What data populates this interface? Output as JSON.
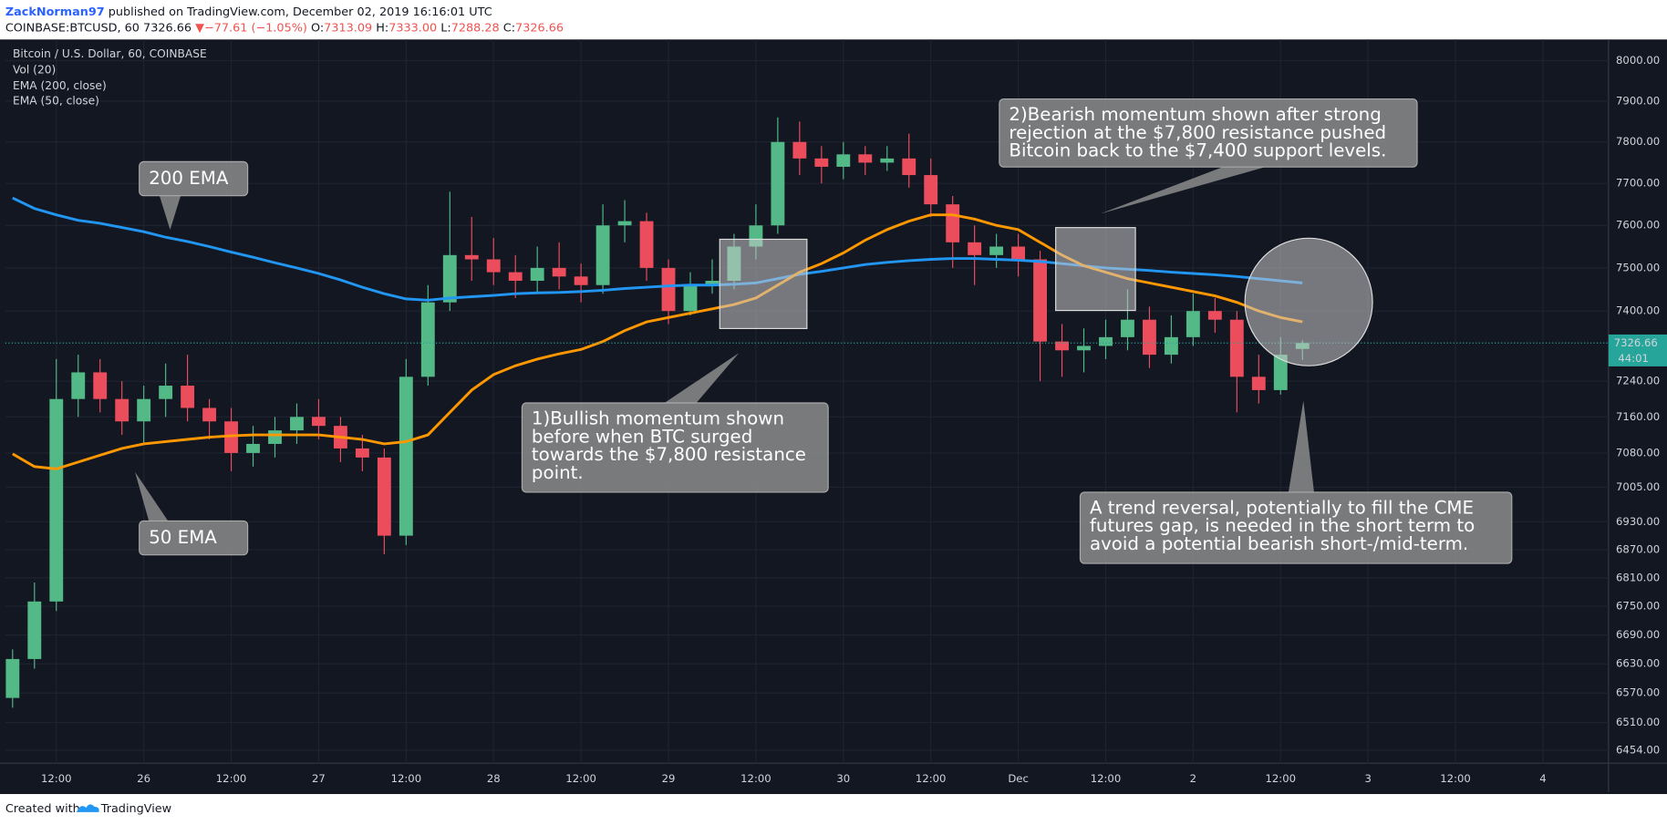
{
  "header": {
    "author": "ZackNorman97",
    "published": "published on TradingView.com, December 02, 2019 16:16:01 UTC",
    "symbol": "COINBASE:BTCUSD, 60",
    "last": "7326.66",
    "arrow": "▼",
    "change": "−77.61 (−1.05%)",
    "o_label": "O:",
    "o": "7313.09",
    "h_label": "H:",
    "h": "7333.00",
    "l_label": "L:",
    "l": "7288.28",
    "c_label": "C:",
    "c": "7326.66"
  },
  "footer": {
    "created": "Created with",
    "brand": "TradingView"
  },
  "chart_data": {
    "type": "candlestick",
    "title": "Bitcoin / U.S. Dollar, 60, COINBASE",
    "indicators": [
      "Vol (20)"
    ],
    "x": [
      "2019-11-25T06:00",
      "2019-11-25T09:00",
      "2019-11-25T12:00",
      "2019-11-25T15:00",
      "2019-11-25T18:00",
      "2019-11-25T21:00",
      "2019-11-26T00:00",
      "2019-11-26T03:00",
      "2019-11-26T06:00",
      "2019-11-26T09:00",
      "2019-11-26T12:00",
      "2019-11-26T15:00",
      "2019-11-26T18:00",
      "2019-11-26T21:00",
      "2019-11-27T00:00",
      "2019-11-27T03:00",
      "2019-11-27T06:00",
      "2019-11-27T09:00",
      "2019-11-27T12:00",
      "2019-11-27T15:00",
      "2019-11-27T18:00",
      "2019-11-27T21:00",
      "2019-11-28T00:00",
      "2019-11-28T03:00",
      "2019-11-28T06:00",
      "2019-11-28T09:00",
      "2019-11-28T12:00",
      "2019-11-28T15:00",
      "2019-11-28T18:00",
      "2019-11-28T21:00",
      "2019-11-29T00:00",
      "2019-11-29T03:00",
      "2019-11-29T06:00",
      "2019-11-29T09:00",
      "2019-11-29T12:00",
      "2019-11-29T15:00",
      "2019-11-29T18:00",
      "2019-11-29T21:00",
      "2019-11-30T00:00",
      "2019-11-30T03:00",
      "2019-11-30T06:00",
      "2019-11-30T09:00",
      "2019-11-30T12:00",
      "2019-11-30T15:00",
      "2019-11-30T18:00",
      "2019-11-30T21:00",
      "2019-12-01T00:00",
      "2019-12-01T03:00",
      "2019-12-01T06:00",
      "2019-12-01T09:00",
      "2019-12-01T12:00",
      "2019-12-01T15:00",
      "2019-12-01T18:00",
      "2019-12-01T21:00",
      "2019-12-02T00:00",
      "2019-12-02T03:00",
      "2019-12-02T06:00",
      "2019-12-02T09:00",
      "2019-12-02T12:00",
      "2019-12-02T15:00"
    ],
    "open": [
      6560,
      6640,
      6760,
      7200,
      7260,
      7200,
      7150,
      7200,
      7230,
      7180,
      7150,
      7080,
      7100,
      7130,
      7160,
      7140,
      7090,
      7070,
      6900,
      7250,
      7420,
      7530,
      7520,
      7490,
      7470,
      7500,
      7480,
      7460,
      7600,
      7610,
      7500,
      7400,
      7460,
      7470,
      7550,
      7600,
      7800,
      7760,
      7740,
      7770,
      7750,
      7760,
      7720,
      7650,
      7560,
      7530,
      7550,
      7520,
      7330,
      7310,
      7320,
      7340,
      7380,
      7300,
      7340,
      7400,
      7380,
      7250,
      7220,
      7313.09
    ],
    "high": [
      6660,
      6800,
      7290,
      7300,
      7290,
      7240,
      7230,
      7280,
      7300,
      7200,
      7180,
      7140,
      7160,
      7190,
      7200,
      7160,
      7120,
      7090,
      7290,
      7460,
      7680,
      7620,
      7570,
      7530,
      7550,
      7560,
      7510,
      7650,
      7660,
      7630,
      7520,
      7490,
      7520,
      7580,
      7650,
      7860,
      7850,
      7790,
      7800,
      7790,
      7790,
      7820,
      7760,
      7670,
      7600,
      7580,
      7580,
      7540,
      7370,
      7360,
      7380,
      7450,
      7410,
      7390,
      7440,
      7430,
      7400,
      7300,
      7340,
      7333.0
    ],
    "low": [
      6540,
      6620,
      6740,
      7160,
      7170,
      7120,
      7100,
      7160,
      7150,
      7110,
      7040,
      7050,
      7070,
      7100,
      7110,
      7060,
      7040,
      6860,
      6880,
      7230,
      7400,
      7470,
      7460,
      7430,
      7440,
      7450,
      7420,
      7440,
      7560,
      7470,
      7370,
      7390,
      7440,
      7450,
      7520,
      7580,
      7720,
      7700,
      7710,
      7720,
      7730,
      7690,
      7620,
      7500,
      7460,
      7500,
      7480,
      7240,
      7250,
      7260,
      7290,
      7310,
      7270,
      7280,
      7320,
      7350,
      7170,
      7190,
      7210,
      7288.28
    ],
    "close": [
      6640,
      6760,
      7200,
      7260,
      7200,
      7150,
      7200,
      7230,
      7180,
      7150,
      7080,
      7100,
      7130,
      7160,
      7140,
      7090,
      7070,
      6900,
      7250,
      7420,
      7530,
      7520,
      7490,
      7470,
      7500,
      7480,
      7460,
      7600,
      7610,
      7500,
      7400,
      7460,
      7470,
      7550,
      7600,
      7800,
      7760,
      7740,
      7770,
      7750,
      7760,
      7720,
      7650,
      7560,
      7530,
      7550,
      7520,
      7330,
      7310,
      7320,
      7340,
      7380,
      7300,
      7340,
      7400,
      7380,
      7250,
      7220,
      7300,
      7326.66
    ],
    "up_color": "#53b987",
    "down_color": "#eb4d5c",
    "series": [
      {
        "name": "EMA (200, close)",
        "color": "#2196f3",
        "values": [
          7665,
          7640,
          7625,
          7612,
          7605,
          7595,
          7585,
          7572,
          7562,
          7550,
          7537,
          7525,
          7512,
          7500,
          7487,
          7472,
          7455,
          7440,
          7428,
          7425,
          7430,
          7433,
          7436,
          7440,
          7442,
          7443,
          7445,
          7448,
          7452,
          7455,
          7458,
          7460,
          7460,
          7462,
          7465,
          7475,
          7485,
          7492,
          7500,
          7508,
          7513,
          7517,
          7520,
          7522,
          7522,
          7520,
          7518,
          7515,
          7510,
          7505,
          7500,
          7497,
          7494,
          7490,
          7487,
          7484,
          7480,
          7475,
          7470,
          7465
        ]
      },
      {
        "name": "EMA (50, close)",
        "color": "#ff9800",
        "values": [
          7078,
          7050,
          7045,
          7060,
          7075,
          7090,
          7100,
          7105,
          7110,
          7115,
          7118,
          7120,
          7120,
          7120,
          7120,
          7115,
          7110,
          7100,
          7105,
          7120,
          7170,
          7220,
          7255,
          7275,
          7290,
          7302,
          7312,
          7330,
          7355,
          7375,
          7385,
          7395,
          7405,
          7415,
          7430,
          7460,
          7490,
          7510,
          7535,
          7565,
          7590,
          7610,
          7625,
          7625,
          7615,
          7600,
          7590,
          7560,
          7530,
          7505,
          7490,
          7475,
          7465,
          7455,
          7445,
          7435,
          7420,
          7400,
          7385,
          7375
        ]
      }
    ],
    "last_price": {
      "value": 7326.66,
      "label": "7326.66",
      "countdown": "44:01",
      "color": "#26a69a"
    },
    "log_scale": true,
    "grid": true,
    "xlim": [
      "2019-11-25T05:00",
      "2019-12-04T09:00"
    ],
    "xticks": [
      {
        "value": "2019-11-25T12:00",
        "label": "12:00"
      },
      {
        "value": "2019-11-26T00:00",
        "label": "26"
      },
      {
        "value": "2019-11-26T12:00",
        "label": "12:00"
      },
      {
        "value": "2019-11-27T00:00",
        "label": "27"
      },
      {
        "value": "2019-11-27T12:00",
        "label": "12:00"
      },
      {
        "value": "2019-11-28T00:00",
        "label": "28"
      },
      {
        "value": "2019-11-28T12:00",
        "label": "12:00"
      },
      {
        "value": "2019-11-29T00:00",
        "label": "29"
      },
      {
        "value": "2019-11-29T12:00",
        "label": "12:00"
      },
      {
        "value": "2019-11-30T00:00",
        "label": "30"
      },
      {
        "value": "2019-11-30T12:00",
        "label": "12:00"
      },
      {
        "value": "2019-12-01T00:00",
        "label": "Dec"
      },
      {
        "value": "2019-12-01T12:00",
        "label": "12:00"
      },
      {
        "value": "2019-12-02T00:00",
        "label": "2"
      },
      {
        "value": "2019-12-02T12:00",
        "label": "12:00"
      },
      {
        "value": "2019-12-03T00:00",
        "label": "3"
      },
      {
        "value": "2019-12-03T12:00",
        "label": "12:00"
      },
      {
        "value": "2019-12-04T00:00",
        "label": "4"
      }
    ],
    "ylim": [
      6428,
      8045
    ],
    "yticks": [
      {
        "value": 8000,
        "label": "8000.00"
      },
      {
        "value": 7900,
        "label": "7900.00"
      },
      {
        "value": 7800,
        "label": "7800.00"
      },
      {
        "value": 7700,
        "label": "7700.00"
      },
      {
        "value": 7600,
        "label": "7600.00"
      },
      {
        "value": 7500,
        "label": "7500.00"
      },
      {
        "value": 7400,
        "label": "7400.00"
      },
      {
        "value": 7240,
        "label": "7240.00"
      },
      {
        "value": 7160,
        "label": "7160.00"
      },
      {
        "value": 7080,
        "label": "7080.00"
      },
      {
        "value": 7005,
        "label": "7005.00"
      },
      {
        "value": 6930,
        "label": "6930.00"
      },
      {
        "value": 6870,
        "label": "6870.00"
      },
      {
        "value": 6810,
        "label": "6810.00"
      },
      {
        "value": 6750,
        "label": "6750.00"
      },
      {
        "value": 6690,
        "label": "6690.00"
      },
      {
        "value": 6630,
        "label": "6630.00"
      },
      {
        "value": 6570,
        "label": "6570.00"
      },
      {
        "value": 6510,
        "label": "6510.00"
      },
      {
        "value": 6454,
        "label": "6454.00"
      }
    ],
    "annotations": [
      {
        "lines": [
          "200 EMA"
        ]
      },
      {
        "lines": [
          "50 EMA"
        ]
      },
      {
        "lines": [
          "1)Bullish momentum shown",
          "before when BTC surged",
          "towards the $7,800 resistance",
          "point."
        ]
      },
      {
        "lines": [
          "2)Bearish momentum shown after strong",
          "rejection at the $7,800 resistance pushed",
          "Bitcoin back to the $7,400 support levels."
        ]
      },
      {
        "lines": [
          "A trend reversal, potentially to fill the CME",
          "futures gap, is needed in the short term to",
          "avoid a potential bearish short-/mid-term."
        ]
      }
    ]
  }
}
